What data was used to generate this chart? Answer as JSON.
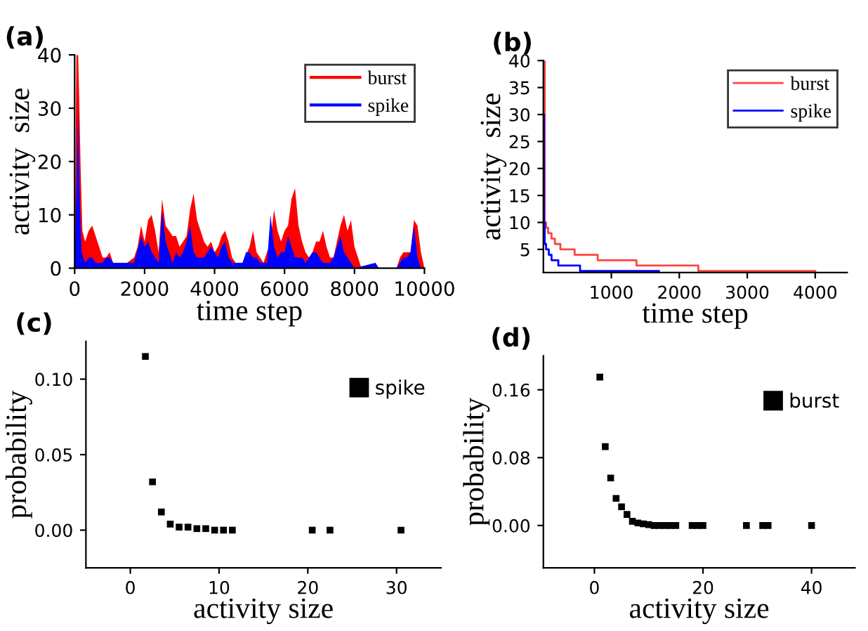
{
  "chart_data": [
    {
      "type": "area",
      "title": "(a)",
      "xlabel": "time step",
      "ylabel": "activity  size",
      "xlim": [
        0,
        10000
      ],
      "ylim": [
        0,
        40
      ],
      "xticks": [
        0,
        2000,
        4000,
        6000,
        8000,
        10000
      ],
      "yticks": [
        0,
        10,
        20,
        30,
        40
      ],
      "legend": "top right",
      "grid": false,
      "series": [
        {
          "name": "burst",
          "color": "#ff0000",
          "x": [
            0,
            50,
            100,
            130,
            170,
            220,
            300,
            400,
            500,
            600,
            700,
            800,
            900,
            1000,
            1100,
            1300,
            1500,
            1700,
            1800,
            1900,
            2000,
            2100,
            2200,
            2300,
            2400,
            2500,
            2600,
            2700,
            2800,
            2900,
            3000,
            3100,
            3200,
            3300,
            3400,
            3500,
            3600,
            3700,
            3800,
            3900,
            4000,
            4100,
            4200,
            4300,
            4400,
            4500,
            4600,
            4800,
            5000,
            5100,
            5200,
            5300,
            5400,
            5600,
            5700,
            5800,
            5900,
            6000,
            6100,
            6200,
            6300,
            6400,
            6500,
            6600,
            6700,
            6800,
            6900,
            7000,
            7100,
            7200,
            7300,
            7400,
            7500,
            7600,
            7700,
            7800,
            7900,
            8000,
            8100,
            8200,
            9200,
            9300,
            9400,
            9500,
            9600,
            9700,
            9800,
            9900,
            10000
          ],
          "values": [
            0,
            40,
            40,
            32,
            19,
            7,
            5,
            7,
            8,
            6,
            4,
            2,
            2,
            3,
            1,
            1,
            1,
            2,
            4,
            8,
            5,
            9,
            10,
            7,
            3,
            13,
            8,
            7,
            6,
            6,
            4,
            5,
            6,
            11,
            14,
            9,
            7,
            5,
            4,
            5,
            3,
            4,
            6,
            7,
            5,
            2,
            1,
            1,
            4,
            7,
            3,
            2,
            1,
            5,
            11,
            7,
            5,
            7,
            8,
            13,
            15,
            8,
            5,
            3,
            2,
            3,
            5,
            5,
            7,
            4,
            2,
            2,
            5,
            8,
            10,
            7,
            9,
            4,
            2,
            0,
            0,
            2,
            3,
            3,
            3,
            9,
            8,
            3,
            0
          ]
        },
        {
          "name": "spike",
          "color": "#0000ff",
          "x": [
            0,
            100,
            150,
            200,
            300,
            400,
            500,
            600,
            800,
            900,
            1000,
            1100,
            1300,
            1700,
            1900,
            2000,
            2100,
            2200,
            2300,
            2400,
            2500,
            2600,
            2700,
            2800,
            2900,
            3000,
            3100,
            3200,
            3300,
            3400,
            3500,
            3700,
            3900,
            4000,
            4100,
            4200,
            4300,
            4400,
            4500,
            4800,
            4900,
            5000,
            5100,
            5200,
            5300,
            5500,
            5600,
            5700,
            5800,
            5900,
            6000,
            6100,
            6200,
            6300,
            6500,
            6600,
            6800,
            6900,
            7000,
            7100,
            7300,
            7400,
            7500,
            7600,
            7700,
            7800,
            7900,
            8000,
            8600,
            8700,
            9200,
            9300,
            9400,
            9500,
            9600,
            9700,
            9800,
            9900,
            10000
          ],
          "values": [
            0,
            30,
            12,
            3,
            1,
            2,
            2,
            1,
            1,
            2,
            2,
            1,
            1,
            1,
            6,
            4,
            5,
            3,
            2,
            1,
            11,
            5,
            3,
            1,
            3,
            2,
            3,
            5,
            8,
            3,
            2,
            2,
            4,
            3,
            2,
            4,
            5,
            2,
            1,
            1,
            3,
            3,
            2,
            2,
            1,
            1,
            10,
            4,
            2,
            3,
            3,
            6,
            4,
            2,
            2,
            1,
            3,
            3,
            2,
            1,
            1,
            2,
            4,
            6,
            3,
            2,
            1,
            0,
            1,
            0,
            0,
            1,
            2,
            2,
            3,
            8,
            2,
            0,
            0
          ]
        }
      ]
    },
    {
      "type": "step",
      "title": "(b)",
      "xlabel": "time step",
      "ylabel": "activity  size",
      "xlim": [
        0,
        4470
      ],
      "ylim": [
        0.7,
        40
      ],
      "xticks": [
        1000,
        2000,
        3000,
        4000
      ],
      "yticks": [
        5,
        10,
        15,
        20,
        25,
        30,
        35,
        40
      ],
      "legend": "top right",
      "grid": false,
      "series": [
        {
          "name": "burst",
          "color": "#ff4444",
          "x": [
            0,
            20,
            40,
            70,
            120,
            170,
            250,
            460,
            800,
            1370,
            2280,
            4000
          ],
          "values": [
            40,
            10,
            9,
            8,
            7,
            6,
            5,
            4,
            3,
            2,
            1,
            1
          ]
        },
        {
          "name": "spike",
          "color": "#0000ff",
          "x": [
            0,
            10,
            20,
            40,
            80,
            120,
            220,
            540,
            1700
          ],
          "values": [
            30,
            10,
            6,
            5,
            4,
            3,
            2,
            1,
            1
          ]
        }
      ]
    },
    {
      "type": "scatter",
      "title": "(c)",
      "xlabel": "activity size",
      "ylabel": "probability",
      "xlim": [
        -5,
        35
      ],
      "ylim": [
        -0.025,
        0.125
      ],
      "xticks": [
        0,
        10,
        20,
        30
      ],
      "yticks": [
        {
          "value": 0,
          "label": "0.00"
        },
        {
          "value": 0.05,
          "label": "0.05"
        },
        {
          "value": 0.1,
          "label": "0.10"
        }
      ],
      "legend": "top right",
      "marker": "square",
      "grid": false,
      "series": [
        {
          "name": "spike",
          "color": "#000000",
          "x": [
            1.7,
            2.5,
            3.5,
            4.5,
            5.5,
            6.5,
            7.5,
            8.5,
            9.5,
            10.5,
            11.5,
            20.5,
            22.5,
            30.5
          ],
          "values": [
            0.115,
            0.032,
            0.012,
            0.004,
            0.002,
            0.002,
            0.001,
            0.001,
            0,
            0,
            0,
            0,
            0,
            0
          ]
        }
      ]
    },
    {
      "type": "scatter",
      "title": "(d)",
      "xlabel": "activity size",
      "ylabel": "probability",
      "xlim": [
        -9.4,
        48
      ],
      "ylim": [
        -0.05,
        0.2
      ],
      "xticks": [
        0,
        20,
        40
      ],
      "yticks": [
        {
          "value": 0,
          "label": "0.00"
        },
        {
          "value": 0.08,
          "label": "0.08"
        },
        {
          "value": 0.16,
          "label": "0.16"
        }
      ],
      "legend": "top right",
      "marker": "square",
      "grid": false,
      "series": [
        {
          "name": "burst",
          "color": "#000000",
          "x": [
            1,
            2,
            3,
            4,
            5,
            6,
            7,
            8,
            9,
            10,
            11,
            12,
            13,
            14,
            15,
            18,
            19,
            20,
            28,
            31,
            32,
            40
          ],
          "values": [
            0.175,
            0.093,
            0.056,
            0.032,
            0.022,
            0.013,
            0.005,
            0.003,
            0.002,
            0.001,
            0,
            0,
            0,
            0,
            0,
            0,
            0,
            0,
            0,
            0,
            0,
            0
          ]
        }
      ]
    }
  ]
}
